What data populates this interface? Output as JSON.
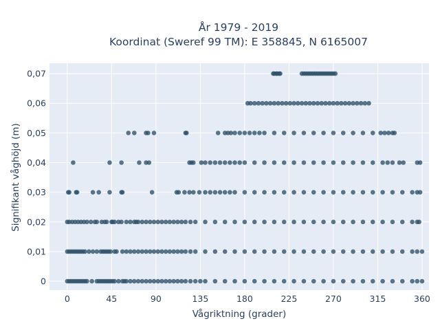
{
  "chart_data": {
    "type": "scatter",
    "title_line1": "År 1979 - 2019",
    "title_line2": "Koordinat (Sweref 99 TM): E 358845, N 6165007",
    "xlabel": "Vågriktning (grader)",
    "ylabel": "Signifikant våghöjd (m)",
    "xlim": [
      -18,
      367
    ],
    "ylim": [
      -0.003,
      0.0735
    ],
    "xticks": [
      0,
      45,
      90,
      135,
      180,
      225,
      270,
      315,
      360
    ],
    "xtick_labels": [
      "0",
      "45",
      "90",
      "135",
      "180",
      "225",
      "270",
      "315",
      "360"
    ],
    "yticks": [
      0,
      0.01,
      0.02,
      0.03,
      0.04,
      0.05,
      0.06,
      0.07
    ],
    "ytick_labels": [
      "0",
      "0,01",
      "0,02",
      "0,03",
      "0,04",
      "0,05",
      "0,06",
      "0,07"
    ],
    "grid": true,
    "marker_color": "#2e5068",
    "background_color": "#e5ecf6",
    "series": [
      {
        "y": 0.07,
        "x": [
          209,
          210,
          212,
          213,
          215,
          216,
          238,
          240,
          242,
          244,
          246,
          248,
          250,
          252,
          254,
          256,
          258,
          260,
          262,
          264,
          266,
          268,
          270,
          272
        ]
      },
      {
        "y": 0.06,
        "x": [
          183,
          186,
          190,
          194,
          198,
          202,
          206,
          210,
          214,
          218,
          222,
          226,
          230,
          234,
          238,
          242,
          246,
          250,
          254,
          258,
          262,
          266,
          270,
          274,
          278,
          282,
          286,
          290,
          294,
          298,
          302,
          306
        ]
      },
      {
        "y": 0.05,
        "x": [
          62,
          68,
          80,
          82,
          88,
          120,
          121,
          153,
          160,
          163,
          166,
          170,
          175,
          180,
          185,
          190,
          195,
          200,
          210,
          220,
          230,
          240,
          250,
          260,
          270,
          280,
          290,
          300,
          310,
          318,
          322,
          326,
          330,
          332
        ]
      },
      {
        "y": 0.04,
        "x": [
          6,
          43,
          55,
          73,
          80,
          83,
          124,
          126,
          128,
          136,
          140,
          145,
          150,
          155,
          160,
          165,
          170,
          175,
          180,
          190,
          200,
          210,
          220,
          230,
          240,
          250,
          260,
          270,
          280,
          290,
          300,
          310,
          320,
          325,
          330,
          337,
          341,
          355,
          358
        ]
      },
      {
        "y": 0.03,
        "x": [
          1,
          2,
          9,
          10,
          26,
          32,
          43,
          55,
          56,
          86,
          111,
          113,
          119,
          124,
          128,
          134,
          140,
          145,
          150,
          155,
          160,
          165,
          170,
          180,
          190,
          200,
          210,
          220,
          230,
          240,
          250,
          260,
          270,
          280,
          290,
          300,
          310,
          320,
          330,
          340,
          350,
          355,
          358
        ]
      },
      {
        "y": 0.02,
        "x": [
          0,
          2,
          5,
          8,
          11,
          14,
          17,
          20,
          24,
          28,
          30,
          35,
          38,
          40,
          45,
          46,
          48,
          52,
          55,
          60,
          64,
          68,
          70,
          72,
          76,
          80,
          84,
          88,
          92,
          96,
          100,
          104,
          108,
          112,
          116,
          120,
          125,
          130,
          140,
          150,
          160,
          170,
          180,
          190,
          200,
          210,
          220,
          230,
          240,
          250,
          260,
          270,
          280,
          290,
          300,
          310,
          320,
          330,
          340,
          350,
          355,
          357
        ]
      },
      {
        "y": 0.01,
        "x": [
          0,
          2,
          4,
          6,
          8,
          10,
          12,
          14,
          16,
          18,
          22,
          26,
          30,
          34,
          36,
          38,
          40,
          42,
          44,
          48,
          50,
          56,
          60,
          64,
          68,
          72,
          76,
          80,
          84,
          88,
          92,
          96,
          100,
          104,
          108,
          112,
          116,
          120,
          125,
          130,
          140,
          150,
          160,
          170,
          180,
          190,
          200,
          210,
          220,
          230,
          240,
          250,
          260,
          270,
          280,
          290,
          300,
          310,
          320,
          330,
          340,
          350,
          355,
          360
        ]
      },
      {
        "y": 0.0,
        "x": [
          0,
          2,
          4,
          6,
          8,
          10,
          12,
          14,
          16,
          18,
          20,
          25,
          30,
          32,
          34,
          36,
          38,
          40,
          42,
          44,
          46,
          48,
          52,
          56,
          58,
          60,
          64,
          68,
          72,
          76,
          80,
          84,
          88,
          92,
          96,
          100,
          104,
          108,
          112,
          116,
          120,
          125,
          130,
          135,
          140,
          150,
          160,
          170,
          180,
          190,
          200,
          210,
          220,
          230,
          240,
          250,
          260,
          270,
          280,
          290,
          300,
          310,
          320,
          330,
          340,
          350,
          355,
          360
        ]
      }
    ]
  }
}
